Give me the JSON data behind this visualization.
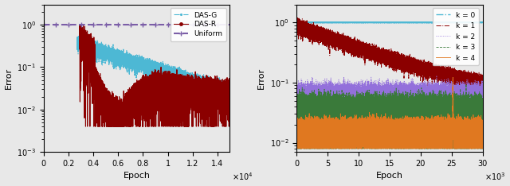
{
  "left_plot": {
    "xlabel": "Epoch",
    "ylabel": "Error",
    "xlim": [
      0,
      15000
    ],
    "ylim": [
      0.001,
      3
    ],
    "legend_order": [
      "DAS-G",
      "DAS-R",
      "Uniform"
    ],
    "colors": {
      "DAS-G": "#4db8d4",
      "DAS-R": "#8b0000",
      "Uniform": "#7b5ea7"
    }
  },
  "right_plot": {
    "xlabel": "Epoch",
    "ylabel": "Error",
    "xlim": [
      0,
      30000
    ],
    "ylim": [
      0.007,
      2
    ],
    "legend": [
      "k = 0",
      "k = 1",
      "k = 2",
      "k = 3",
      "k = 4"
    ],
    "colors": {
      "k0": "#4db8d4",
      "k1": "#8b0000",
      "k2": "#9370db",
      "k3": "#3a7a3a",
      "k4": "#e07820"
    }
  },
  "background_color": "#e8e8e8",
  "seed": 42
}
